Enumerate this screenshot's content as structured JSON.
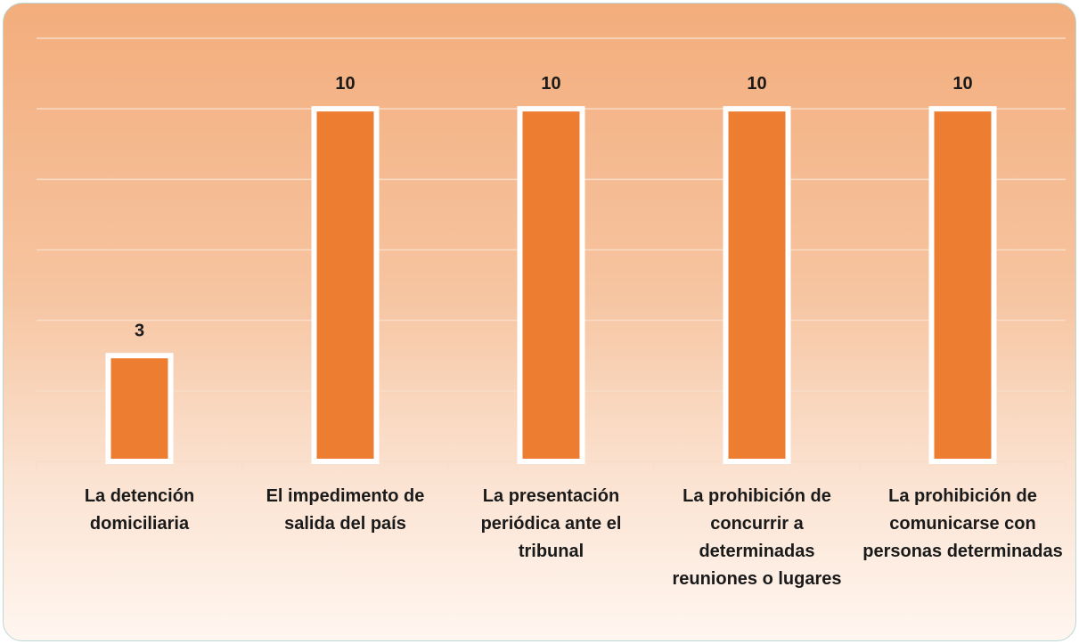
{
  "chart_data": {
    "type": "bar",
    "categories": [
      "La detención domiciliaria",
      "El impedimento de salida del país",
      "La presentación periódica ante el tribunal",
      "La prohibición de concurrir a determinadas reuniones o lugares",
      "La prohibición de comunicarse con personas determinadas"
    ],
    "values": [
      3,
      10,
      10,
      10,
      10
    ],
    "color": "#ed7d31",
    "ylim": [
      0,
      12
    ],
    "yticks": [
      0,
      2,
      4,
      6,
      8,
      10,
      12
    ],
    "grid": true
  }
}
